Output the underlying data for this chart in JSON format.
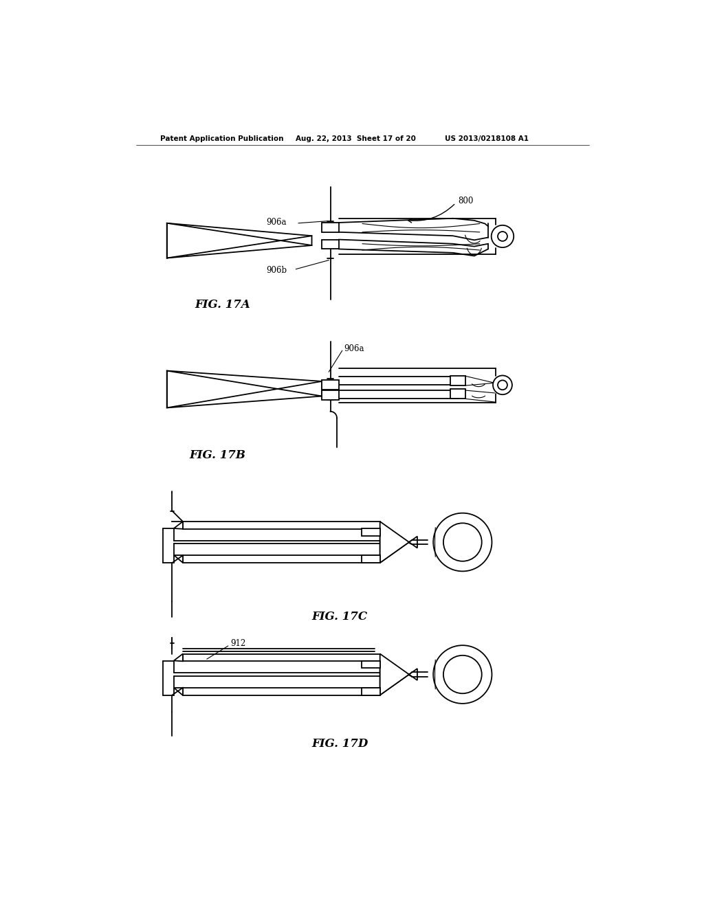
{
  "background_color": "#ffffff",
  "header_left": "Patent Application Publication",
  "header_mid": "Aug. 22, 2013  Sheet 17 of 20",
  "header_right": "US 2013/0218108 A1",
  "fig17A_label": "FIG. 17A",
  "fig17B_label": "FIG. 17B",
  "fig17C_label": "FIG. 17C",
  "fig17D_label": "FIG. 17D",
  "label_800": "800",
  "label_906a_A": "906a",
  "label_906b": "906b",
  "label_906a_B": "906a",
  "label_912": "912",
  "lw": 1.3,
  "lw_thin": 0.8,
  "lw_thick": 2.0
}
